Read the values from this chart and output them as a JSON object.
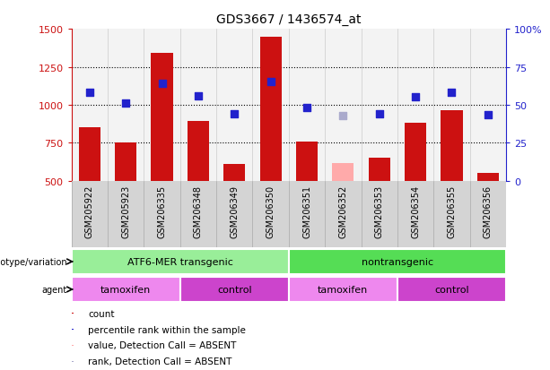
{
  "title": "GDS3667 / 1436574_at",
  "samples": [
    "GSM205922",
    "GSM205923",
    "GSM206335",
    "GSM206348",
    "GSM206349",
    "GSM206350",
    "GSM206351",
    "GSM206352",
    "GSM206353",
    "GSM206354",
    "GSM206355",
    "GSM206356"
  ],
  "count_values": [
    855,
    750,
    1340,
    895,
    610,
    1450,
    760,
    null,
    650,
    885,
    965,
    550
  ],
  "count_absent": [
    null,
    null,
    null,
    null,
    null,
    null,
    null,
    615,
    null,
    null,
    null,
    null
  ],
  "rank_values": [
    1080,
    1010,
    1140,
    1060,
    940,
    1155,
    985,
    null,
    940,
    1055,
    1085,
    935
  ],
  "rank_absent": [
    null,
    null,
    null,
    null,
    null,
    null,
    null,
    930,
    null,
    null,
    null,
    null
  ],
  "ylim": [
    500,
    1500
  ],
  "y2lim": [
    0,
    100
  ],
  "yticks": [
    500,
    750,
    1000,
    1250,
    1500
  ],
  "y2ticks": [
    0,
    25,
    50,
    75,
    100
  ],
  "dotted_lines": [
    750,
    1000,
    1250
  ],
  "bar_color": "#cc1111",
  "absent_bar_color": "#ffaaaa",
  "dot_color": "#2222cc",
  "absent_dot_color": "#aaaacc",
  "genotype_groups": [
    {
      "label": "ATF6-MER transgenic",
      "start": 0,
      "end": 6,
      "color": "#99ee99"
    },
    {
      "label": "nontransgenic",
      "start": 6,
      "end": 12,
      "color": "#55dd55"
    }
  ],
  "agent_groups": [
    {
      "label": "tamoxifen",
      "start": 0,
      "end": 3,
      "color": "#ee88ee"
    },
    {
      "label": "control",
      "start": 3,
      "end": 6,
      "color": "#cc44cc"
    },
    {
      "label": "tamoxifen",
      "start": 6,
      "end": 9,
      "color": "#ee88ee"
    },
    {
      "label": "control",
      "start": 9,
      "end": 12,
      "color": "#cc44cc"
    }
  ],
  "legend_items": [
    {
      "label": "count",
      "color": "#cc1111"
    },
    {
      "label": "percentile rank within the sample",
      "color": "#2222cc"
    },
    {
      "label": "value, Detection Call = ABSENT",
      "color": "#ffaaaa"
    },
    {
      "label": "rank, Detection Call = ABSENT",
      "color": "#aaaacc"
    }
  ],
  "fig_width": 6.13,
  "fig_height": 4.14,
  "dpi": 100
}
